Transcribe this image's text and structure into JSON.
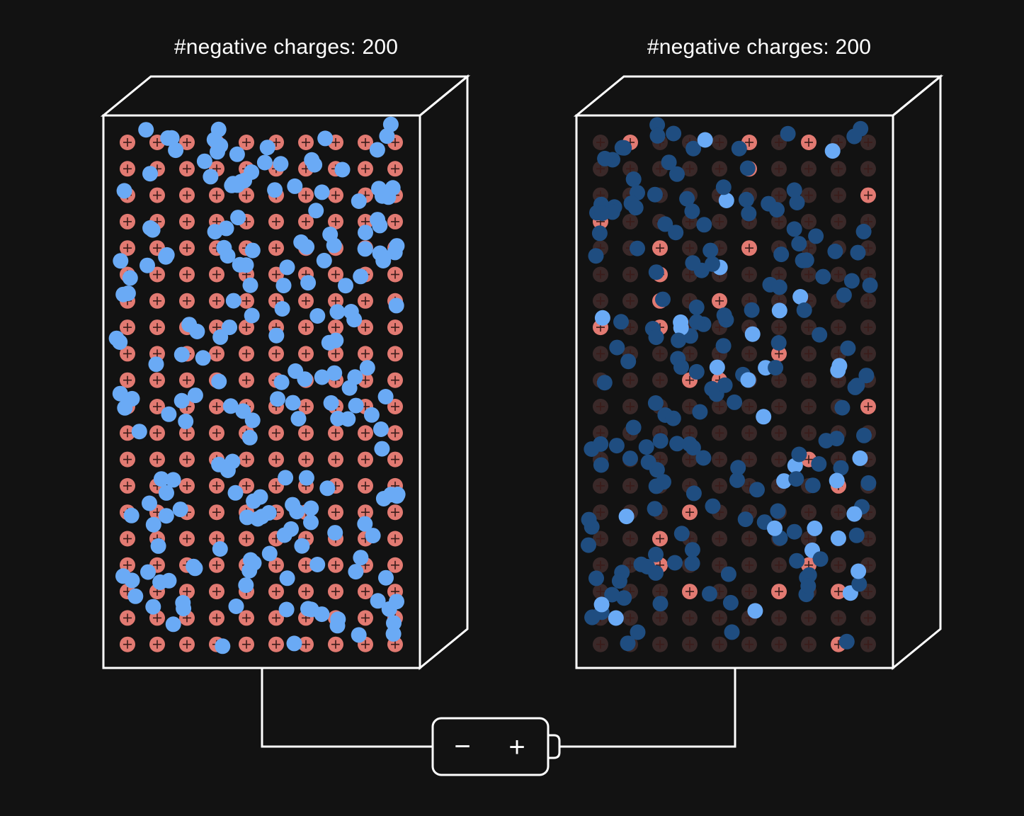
{
  "scene": {
    "background": "#121212",
    "line_color": "#ffffff",
    "positive_ion_color": "#e27a72",
    "positive_ion_dim_color": "#3a2929",
    "electron_color": "#6aaaf5",
    "electron_dim_color": "#1f4d80"
  },
  "left_block": {
    "label": "#negative charges: 200",
    "negative_charges": 200,
    "ion_rows": 20,
    "ion_cols": 10,
    "electron_state": "bright"
  },
  "right_block": {
    "label": "#negative charges: 200",
    "negative_charges": 200,
    "ion_rows": 20,
    "ion_cols": 10,
    "electron_state": "mostly-dim"
  },
  "battery": {
    "negative_symbol": "−",
    "positive_symbol": "+"
  }
}
